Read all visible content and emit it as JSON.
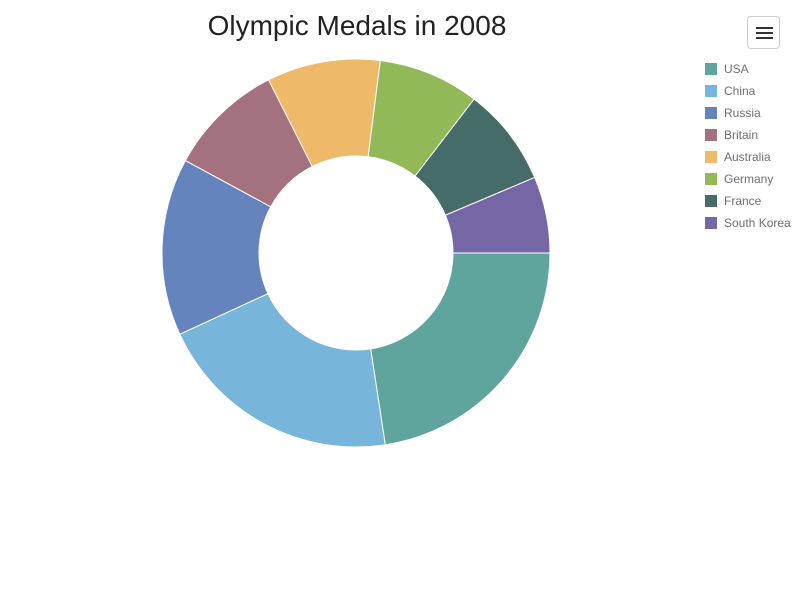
{
  "chart_data": {
    "type": "pie",
    "variant": "donut",
    "title": "Olympic Medals in 2008",
    "categories": [
      "USA",
      "China",
      "Russia",
      "Britain",
      "Australia",
      "Germany",
      "France",
      "South Korea"
    ],
    "values": [
      110,
      100,
      72,
      47,
      46,
      41,
      40,
      31
    ],
    "colors": [
      "#5fa59e",
      "#77b5da",
      "#6583bd",
      "#a4717e",
      "#eeb969",
      "#91b957",
      "#466c69",
      "#7566a5"
    ],
    "legend_position": "right",
    "legend": [
      "USA",
      "China",
      "Russia",
      "Britain",
      "Australia",
      "Germany",
      "France",
      "South Korea"
    ]
  },
  "toolbar": {
    "menu_icon": "hamburger-menu-icon"
  }
}
